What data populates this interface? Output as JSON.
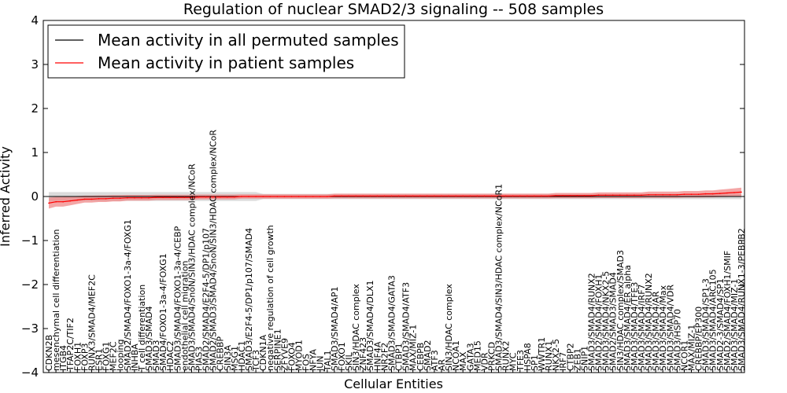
{
  "chart_data": {
    "type": "line",
    "title": "Regulation of nuclear SMAD2/3 signaling -- 508 samples",
    "xlabel": "Cellular Entities",
    "ylabel": "Inferred Activity",
    "ylim": [
      -4,
      4
    ],
    "yticks": [
      "4",
      "3",
      "2",
      "1",
      "0",
      "−1",
      "−2",
      "−3",
      "−4"
    ],
    "grid": false,
    "legend": {
      "placement": "top-left",
      "entries": [
        {
          "name": "Mean activity in all permuted samples",
          "color": "#000000"
        },
        {
          "name": "Mean activity in patient samples",
          "color": "#ff0000"
        }
      ]
    },
    "band_color": "#f08080",
    "permuted_band_color": "#b0b0b0",
    "entities": [
      "CDKN2B",
      "mesenchymal cell differentiation",
      "ITGB4",
      "TFAP2C/TIF2",
      "FOXH1",
      "FOXP3",
      "RUNX3/SMAD4/MEF2C",
      "ESR1",
      "FOXG1",
      "MEF2C",
      "looping",
      "SMAD2/SMAD4/FOXO1-3a-4/FOXG1",
      "INHBA",
      "T cell differentiation",
      "SMAD3/SMAD4",
      "SMAD3",
      "SMAD4/FOXO1-3a-4/FOXG1",
      "HDAC2",
      "SMAD3/SMAD4/FOXO1-3a-4/CEBP",
      "endothelial cell migration",
      "SMAD3/SMAD4/SnoN/SIN3/HDAC complex/NCoR",
      "PIAS3",
      "SMAD2/SMAD4/E2F4-5/DP1/p107",
      "SMAD2/SMAD3/SMAD4/SnoN/SIN3/HDAC complex/NCoR",
      "CREBBP",
      "SIN3A",
      "MSG1",
      "HDAC1",
      "SMAD3/E2F4-5/DP1/p107/SMAD4",
      "TCF3",
      "CDKN1A",
      "negative regulation of cell growth",
      "SERPINE1",
      "ZFYVE9",
      "FOXO4",
      "MYOD1",
      "FOS",
      "NFYA",
      "JUN",
      "TAL1",
      "SMAD3/SMAD4/AP1",
      "FOXO1",
      "SKIL",
      "SIN3/HDAC complex",
      "ZNF423",
      "SMAD3/SMAD4/DLX1",
      "HNF4A",
      "NR2F2",
      "SMAD3/SMAD4/GATA3",
      "CTBP1",
      "SMAD3/SMAD4/ATF3",
      "MAX/MIZ-1",
      "CEBPB",
      "SMAD2",
      "ATF3",
      "AR",
      "SIN3/HDAC complex",
      "NCOA1",
      "MAX",
      "GATA3",
      "MED15",
      "VDR",
      "PRKCD",
      "SMAD3/SMAD4/SIN3/HDAC complex/NCoR1",
      "RUNX2",
      "MYC",
      "TFE3",
      "HSPA8",
      "SP1",
      "WWTR1",
      "RUNX1",
      "NKX2-5",
      "IRF7",
      "CTBP2",
      "ZEB1",
      "SNIP1",
      "SMAD3/SMAD4/RUNX2",
      "SMAD2/SMAD4/FOXH1",
      "SMAD3/SMAD4/NKX2-5",
      "SMAD2/SMAD3/SMAD4",
      "SIN3/HDAC complex/SMAD3",
      "SMAD3/SMAD4/ER alpha",
      "SMAD3/SMAD4/TFE3",
      "SMAD3/SMAD4/IRF7",
      "SMAD3/SMAD4/RUNX2",
      "SMAD3/SMAD4/AR",
      "SMAD3/SMAD4/Max",
      "SMAD3/SMAD4/VDR",
      "SMAD3/HSP70",
      "NCOR1",
      "MAX/MIZ-1",
      "CREBBP/EP300",
      "SMAD3/SMAD4/SP1-3",
      "SMAD3/SMAD4/ARC105",
      "SMAD2-3/SMAD4/SP1",
      "SMAD2/SMAD4/FOXH1/SMIF",
      "SMAD3/SMAD4/MIZ-1",
      "SMAD3/SMAD4/RUNX1-3/PEBPB2"
    ],
    "patient_mean": [
      -0.15,
      -0.12,
      -0.12,
      -0.1,
      -0.08,
      -0.06,
      -0.06,
      -0.05,
      -0.05,
      -0.04,
      -0.04,
      -0.03,
      -0.03,
      -0.03,
      -0.03,
      -0.02,
      -0.02,
      -0.02,
      -0.02,
      -0.02,
      -0.02,
      -0.01,
      -0.01,
      -0.01,
      -0.01,
      -0.01,
      -0.01,
      0.0,
      0.0,
      0.0,
      0.0,
      0.0,
      0.0,
      0.0,
      0.0,
      0.0,
      0.0,
      0.0,
      0.0,
      0.0,
      0.01,
      0.01,
      0.01,
      0.01,
      0.01,
      0.01,
      0.01,
      0.01,
      0.01,
      0.01,
      0.01,
      0.01,
      0.01,
      0.01,
      0.01,
      0.01,
      0.01,
      0.01,
      0.01,
      0.01,
      0.01,
      0.01,
      0.01,
      0.01,
      0.01,
      0.01,
      0.01,
      0.01,
      0.01,
      0.01,
      0.01,
      0.02,
      0.02,
      0.02,
      0.02,
      0.02,
      0.02,
      0.03,
      0.03,
      0.03,
      0.03,
      0.03,
      0.03,
      0.03,
      0.04,
      0.04,
      0.04,
      0.04,
      0.04,
      0.05,
      0.05,
      0.05,
      0.06,
      0.06,
      0.07,
      0.08,
      0.09,
      0.1
    ]
  }
}
